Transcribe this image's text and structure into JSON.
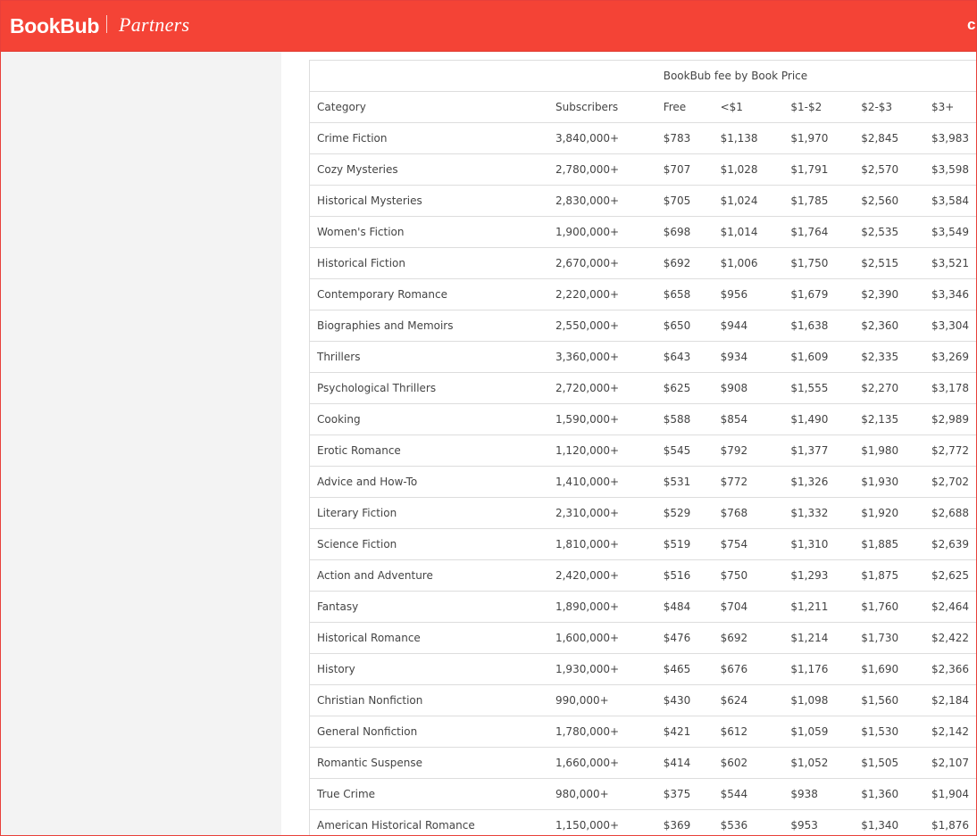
{
  "header": {
    "brand": "BookBub",
    "brand_sub": "Partners",
    "corner_button": "c"
  },
  "table": {
    "group_header": "BookBub fee by Book Price",
    "columns": [
      "Category",
      "Subscribers",
      "Free",
      "<$1",
      "$1-$2",
      "$2-$3",
      "$3+"
    ],
    "rows": [
      [
        "Crime Fiction",
        "3,840,000+",
        "$783",
        "$1,138",
        "$1,970",
        "$2,845",
        "$3,983"
      ],
      [
        "Cozy Mysteries",
        "2,780,000+",
        "$707",
        "$1,028",
        "$1,791",
        "$2,570",
        "$3,598"
      ],
      [
        "Historical Mysteries",
        "2,830,000+",
        "$705",
        "$1,024",
        "$1,785",
        "$2,560",
        "$3,584"
      ],
      [
        "Women's Fiction",
        "1,900,000+",
        "$698",
        "$1,014",
        "$1,764",
        "$2,535",
        "$3,549"
      ],
      [
        "Historical Fiction",
        "2,670,000+",
        "$692",
        "$1,006",
        "$1,750",
        "$2,515",
        "$3,521"
      ],
      [
        "Contemporary Romance",
        "2,220,000+",
        "$658",
        "$956",
        "$1,679",
        "$2,390",
        "$3,346"
      ],
      [
        "Biographies and Memoirs",
        "2,550,000+",
        "$650",
        "$944",
        "$1,638",
        "$2,360",
        "$3,304"
      ],
      [
        "Thrillers",
        "3,360,000+",
        "$643",
        "$934",
        "$1,609",
        "$2,335",
        "$3,269"
      ],
      [
        "Psychological Thrillers",
        "2,720,000+",
        "$625",
        "$908",
        "$1,555",
        "$2,270",
        "$3,178"
      ],
      [
        "Cooking",
        "1,590,000+",
        "$588",
        "$854",
        "$1,490",
        "$2,135",
        "$2,989"
      ],
      [
        "Erotic Romance",
        "1,120,000+",
        "$545",
        "$792",
        "$1,377",
        "$1,980",
        "$2,772"
      ],
      [
        "Advice and How-To",
        "1,410,000+",
        "$531",
        "$772",
        "$1,326",
        "$1,930",
        "$2,702"
      ],
      [
        "Literary Fiction",
        "2,310,000+",
        "$529",
        "$768",
        "$1,332",
        "$1,920",
        "$2,688"
      ],
      [
        "Science Fiction",
        "1,810,000+",
        "$519",
        "$754",
        "$1,310",
        "$1,885",
        "$2,639"
      ],
      [
        "Action and Adventure",
        "2,420,000+",
        "$516",
        "$750",
        "$1,293",
        "$1,875",
        "$2,625"
      ],
      [
        "Fantasy",
        "1,890,000+",
        "$484",
        "$704",
        "$1,211",
        "$1,760",
        "$2,464"
      ],
      [
        "Historical Romance",
        "1,600,000+",
        "$476",
        "$692",
        "$1,214",
        "$1,730",
        "$2,422"
      ],
      [
        "History",
        "1,930,000+",
        "$465",
        "$676",
        "$1,176",
        "$1,690",
        "$2,366"
      ],
      [
        "Christian Nonfiction",
        "990,000+",
        "$430",
        "$624",
        "$1,098",
        "$1,560",
        "$2,184"
      ],
      [
        "General Nonfiction",
        "1,780,000+",
        "$421",
        "$612",
        "$1,059",
        "$1,530",
        "$2,142"
      ],
      [
        "Romantic Suspense",
        "1,660,000+",
        "$414",
        "$602",
        "$1,052",
        "$1,505",
        "$2,107"
      ],
      [
        "True Crime",
        "980,000+",
        "$375",
        "$544",
        "$938",
        "$1,360",
        "$1,904"
      ],
      [
        "American Historical Romance",
        "1,150,000+",
        "$369",
        "$536",
        "$953",
        "$1,340",
        "$1,876"
      ]
    ]
  },
  "colors": {
    "brand_red": "#f44336",
    "sidebar_bg": "#f3f3f3",
    "grid_line": "#dddddd",
    "text": "#444444"
  }
}
